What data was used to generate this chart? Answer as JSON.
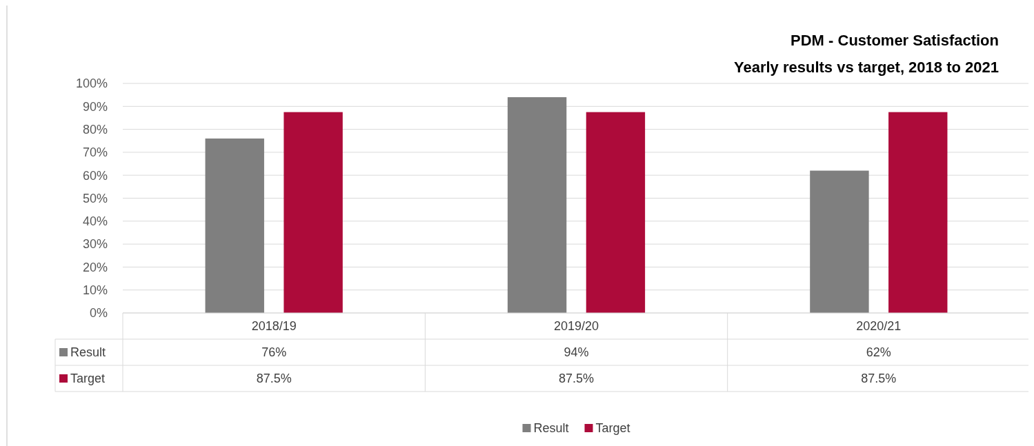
{
  "chart_data": {
    "type": "bar",
    "title": "PDM - Customer Satisfaction",
    "subtitle": "Yearly results vs target, 2018 to 2021",
    "categories": [
      "2018/19",
      "2019/20",
      "2020/21"
    ],
    "series": [
      {
        "name": "Result",
        "color": "#7f7f7f",
        "values": [
          76,
          94,
          62
        ],
        "value_labels": [
          "76%",
          "94%",
          "62%"
        ]
      },
      {
        "name": "Target",
        "color": "#ad0b3a",
        "values": [
          87.5,
          87.5,
          87.5
        ],
        "value_labels": [
          "87.5%",
          "87.5%",
          "87.5%"
        ]
      }
    ],
    "ylim": [
      0,
      100
    ],
    "yticks": [
      {
        "value": 0,
        "label": "0%"
      },
      {
        "value": 10,
        "label": "10%"
      },
      {
        "value": 20,
        "label": "20%"
      },
      {
        "value": 30,
        "label": "30%"
      },
      {
        "value": 40,
        "label": "40%"
      },
      {
        "value": 50,
        "label": "50%"
      },
      {
        "value": 60,
        "label": "60%"
      },
      {
        "value": 70,
        "label": "70%"
      },
      {
        "value": 80,
        "label": "80%"
      },
      {
        "value": 90,
        "label": "90%"
      },
      {
        "value": 100,
        "label": "100%"
      }
    ],
    "grid": "y",
    "legend": "bottom"
  }
}
